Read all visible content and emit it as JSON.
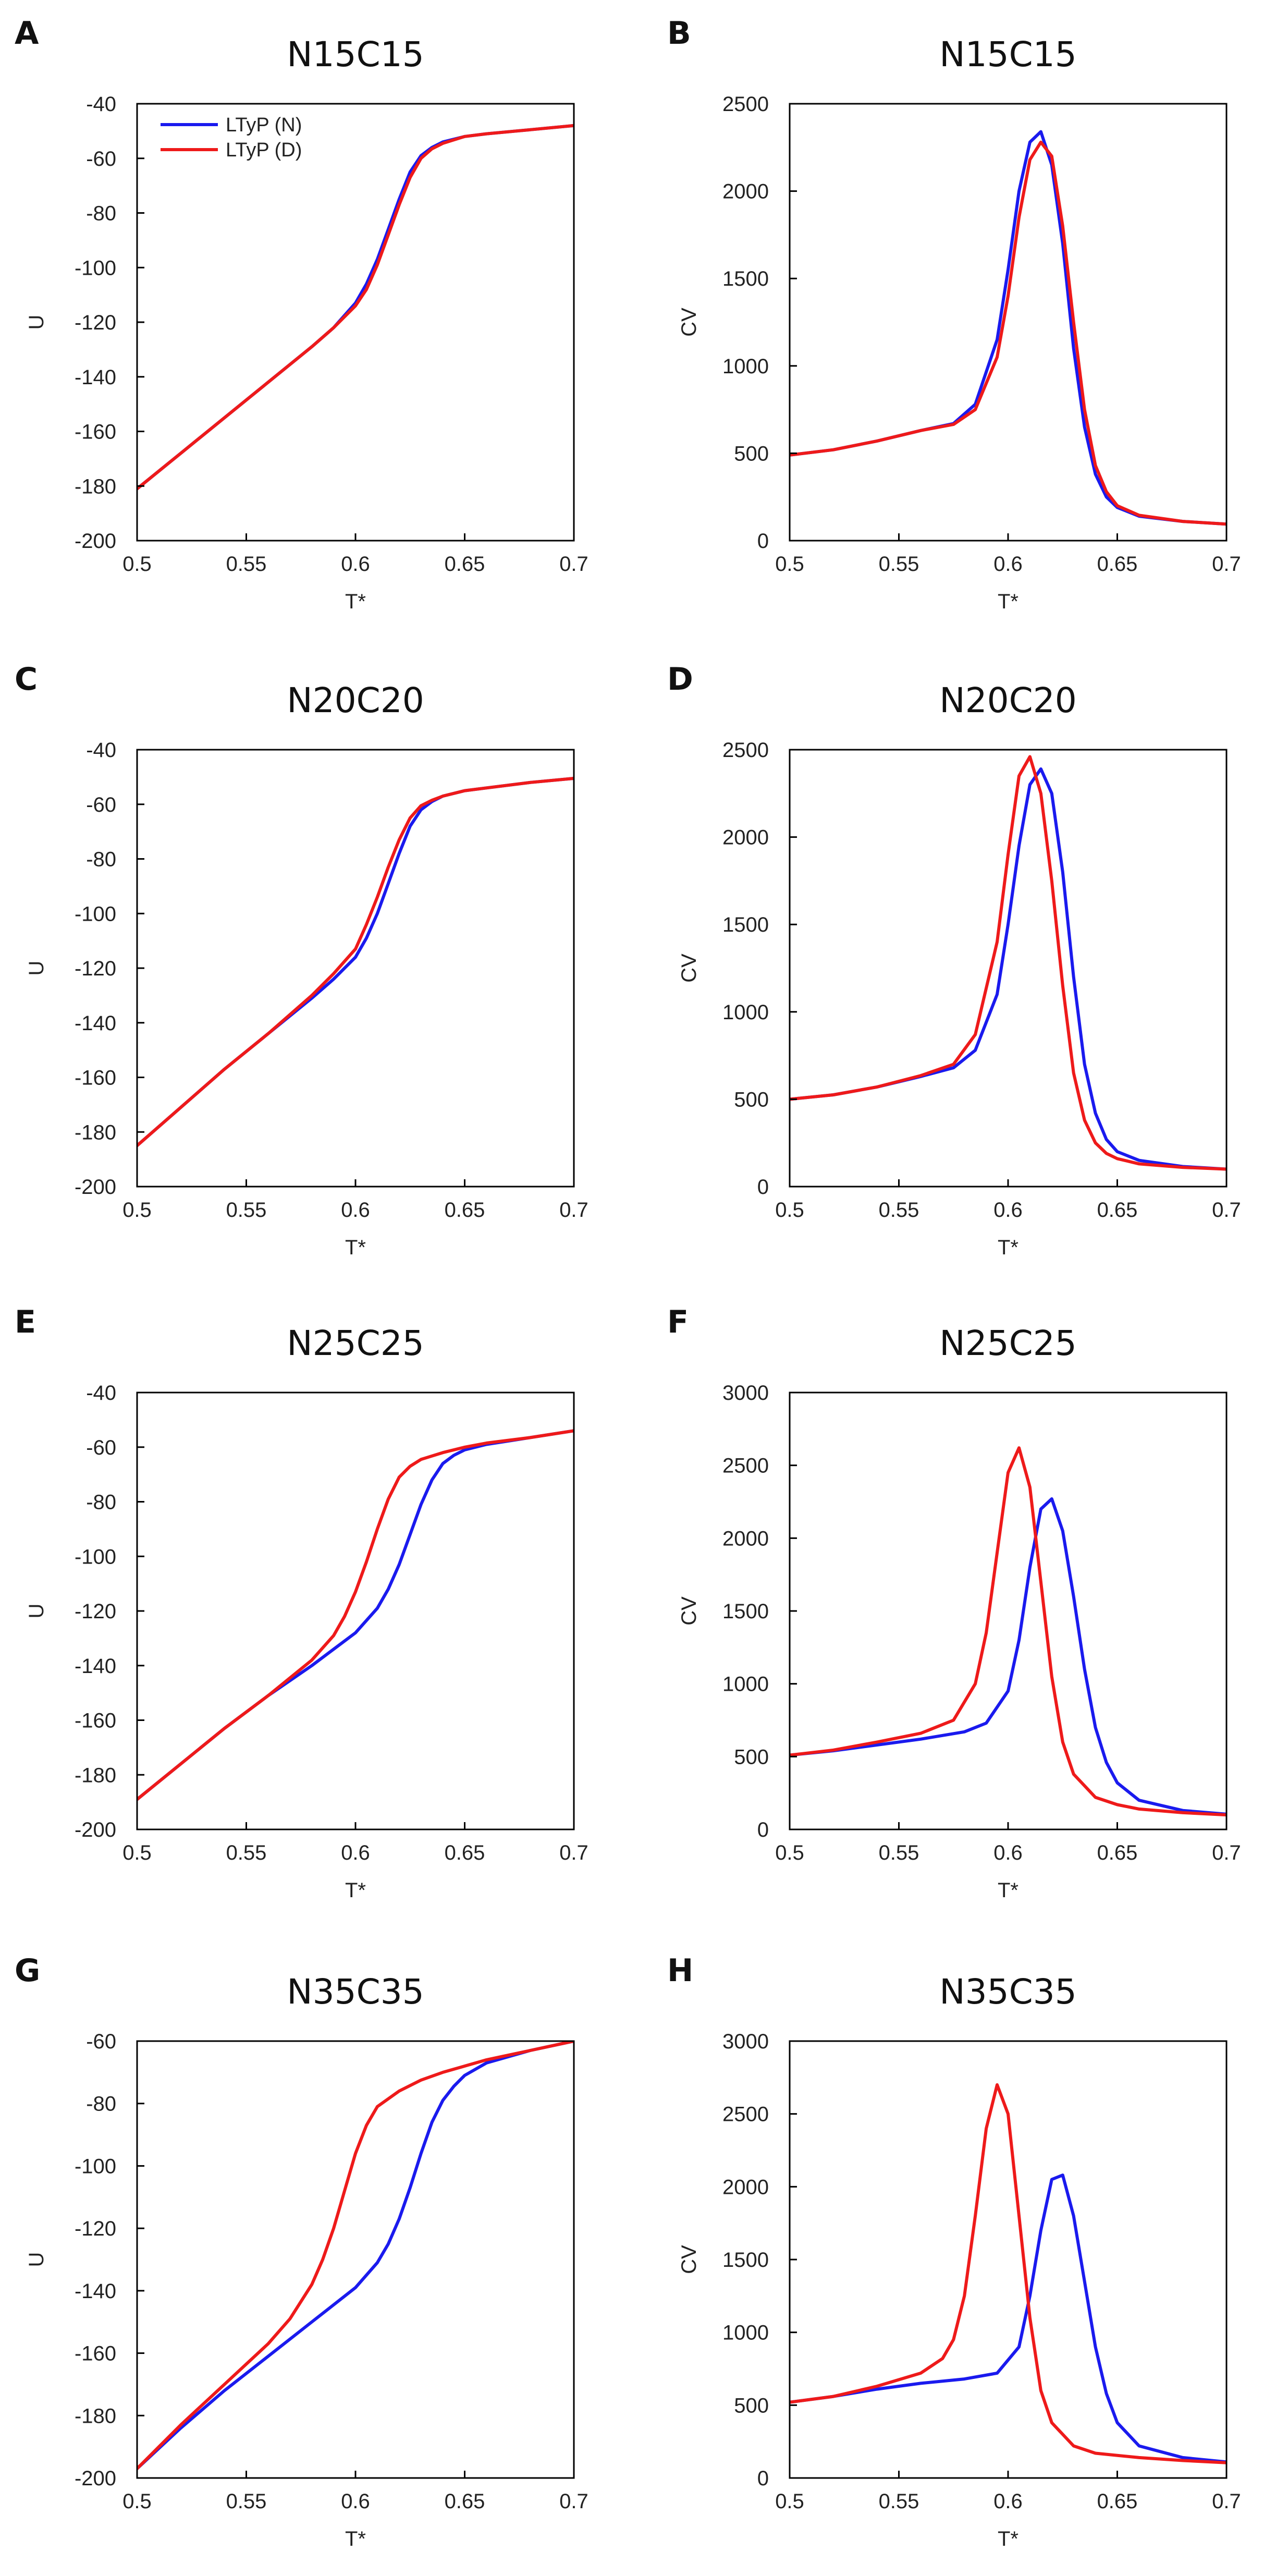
{
  "colors": {
    "native": "#1a1aee",
    "denatured": "#ee1a1a"
  },
  "legend": {
    "entries": [
      {
        "name": "LTyP (N)",
        "color": "#1a1aee"
      },
      {
        "name": "LTyP (D)",
        "color": "#ee1a1a"
      }
    ],
    "placement": "top-left"
  },
  "chart_data": [
    {
      "panel": "A",
      "type": "line",
      "title": "N15C15",
      "xlabel": "T*",
      "ylabel": "U",
      "xlim": [
        0.5,
        0.7
      ],
      "ylim": [
        -200,
        -40
      ],
      "xticks": [
        "0.5",
        "0.55",
        "0.6",
        "0.65",
        "0.7"
      ],
      "yticks": [
        "-40",
        "-60",
        "-80",
        "-100",
        "-120",
        "-140",
        "-160",
        "-180",
        "-200"
      ],
      "series": [
        {
          "name": "LTyP (N)",
          "color": "#1a1aee",
          "x": [
            0.5,
            0.52,
            0.54,
            0.56,
            0.58,
            0.59,
            0.6,
            0.605,
            0.61,
            0.615,
            0.62,
            0.625,
            0.63,
            0.635,
            0.64,
            0.65,
            0.66,
            0.68,
            0.7
          ],
          "y": [
            -181,
            -168,
            -155,
            -142,
            -129,
            -122,
            -113,
            -106,
            -97,
            -86,
            -75,
            -65,
            -59,
            -56,
            -54,
            -52,
            -51,
            -49.5,
            -48
          ]
        },
        {
          "name": "LTyP (D)",
          "color": "#ee1a1a",
          "x": [
            0.5,
            0.52,
            0.54,
            0.56,
            0.58,
            0.59,
            0.6,
            0.605,
            0.61,
            0.615,
            0.62,
            0.625,
            0.63,
            0.635,
            0.64,
            0.65,
            0.66,
            0.68,
            0.7
          ],
          "y": [
            -181,
            -168,
            -155,
            -142,
            -129,
            -122,
            -114,
            -108,
            -99,
            -88,
            -77,
            -67,
            -60,
            -56.5,
            -54.5,
            -52,
            -51,
            -49.5,
            -48
          ]
        }
      ]
    },
    {
      "panel": "B",
      "type": "line",
      "title": "N15C15",
      "xlabel": "T*",
      "ylabel": "CV",
      "xlim": [
        0.5,
        0.7
      ],
      "ylim": [
        0,
        2500
      ],
      "xticks": [
        "0.5",
        "0.55",
        "0.6",
        "0.65",
        "0.7"
      ],
      "yticks": [
        "2500",
        "2000",
        "1500",
        "1000",
        "500",
        "0"
      ],
      "series": [
        {
          "name": "LTyP (N)",
          "color": "#1a1aee",
          "x": [
            0.5,
            0.52,
            0.54,
            0.56,
            0.575,
            0.585,
            0.595,
            0.6,
            0.605,
            0.61,
            0.615,
            0.62,
            0.625,
            0.63,
            0.635,
            0.64,
            0.645,
            0.65,
            0.66,
            0.68,
            0.7
          ],
          "y": [
            490,
            520,
            570,
            630,
            670,
            780,
            1150,
            1550,
            2000,
            2280,
            2340,
            2150,
            1700,
            1100,
            650,
            380,
            250,
            190,
            140,
            110,
            95
          ]
        },
        {
          "name": "LTyP (D)",
          "color": "#ee1a1a",
          "x": [
            0.5,
            0.52,
            0.54,
            0.56,
            0.575,
            0.585,
            0.595,
            0.6,
            0.605,
            0.61,
            0.615,
            0.62,
            0.625,
            0.63,
            0.635,
            0.64,
            0.645,
            0.65,
            0.66,
            0.68,
            0.7
          ],
          "y": [
            490,
            520,
            570,
            630,
            665,
            750,
            1050,
            1400,
            1850,
            2180,
            2280,
            2200,
            1800,
            1250,
            750,
            430,
            280,
            200,
            145,
            110,
            95
          ]
        }
      ]
    },
    {
      "panel": "C",
      "type": "line",
      "title": "N20C20",
      "xlabel": "T*",
      "ylabel": "U",
      "xlim": [
        0.5,
        0.7
      ],
      "ylim": [
        -200,
        -40
      ],
      "xticks": [
        "0.5",
        "0.55",
        "0.6",
        "0.65",
        "0.7"
      ],
      "yticks": [
        "-40",
        "-60",
        "-80",
        "-100",
        "-120",
        "-140",
        "-160",
        "-180",
        "-200"
      ],
      "series": [
        {
          "name": "LTyP (N)",
          "color": "#1a1aee",
          "x": [
            0.5,
            0.52,
            0.54,
            0.56,
            0.58,
            0.59,
            0.6,
            0.605,
            0.61,
            0.615,
            0.62,
            0.625,
            0.63,
            0.635,
            0.64,
            0.65,
            0.66,
            0.68,
            0.7
          ],
          "y": [
            -185,
            -171,
            -157,
            -144,
            -131,
            -124,
            -116,
            -109,
            -100,
            -89,
            -78,
            -68,
            -62,
            -59,
            -57,
            -55,
            -54,
            -52,
            -50.5
          ]
        },
        {
          "name": "LTyP (D)",
          "color": "#ee1a1a",
          "x": [
            0.5,
            0.52,
            0.54,
            0.56,
            0.58,
            0.59,
            0.6,
            0.605,
            0.61,
            0.615,
            0.62,
            0.625,
            0.63,
            0.635,
            0.64,
            0.65,
            0.66,
            0.68,
            0.7
          ],
          "y": [
            -185,
            -171,
            -157,
            -144,
            -130,
            -122,
            -113,
            -104,
            -94,
            -83,
            -73,
            -65,
            -60.5,
            -58.5,
            -57,
            -55,
            -54,
            -52,
            -50.5
          ]
        }
      ]
    },
    {
      "panel": "D",
      "type": "line",
      "title": "N20C20",
      "xlabel": "T*",
      "ylabel": "CV",
      "xlim": [
        0.5,
        0.7
      ],
      "ylim": [
        0,
        2500
      ],
      "xticks": [
        "0.5",
        "0.55",
        "0.6",
        "0.65",
        "0.7"
      ],
      "yticks": [
        "2500",
        "2000",
        "1500",
        "1000",
        "500",
        "0"
      ],
      "series": [
        {
          "name": "LTyP (N)",
          "color": "#1a1aee",
          "x": [
            0.5,
            0.52,
            0.54,
            0.56,
            0.575,
            0.585,
            0.595,
            0.6,
            0.605,
            0.61,
            0.615,
            0.62,
            0.625,
            0.63,
            0.635,
            0.64,
            0.645,
            0.65,
            0.66,
            0.68,
            0.7
          ],
          "y": [
            500,
            525,
            570,
            630,
            680,
            780,
            1100,
            1500,
            1950,
            2300,
            2390,
            2250,
            1800,
            1200,
            700,
            420,
            270,
            200,
            150,
            115,
            100
          ]
        },
        {
          "name": "LTyP (D)",
          "color": "#ee1a1a",
          "x": [
            0.5,
            0.52,
            0.54,
            0.56,
            0.575,
            0.585,
            0.595,
            0.6,
            0.605,
            0.61,
            0.615,
            0.62,
            0.625,
            0.63,
            0.635,
            0.64,
            0.645,
            0.65,
            0.66,
            0.68,
            0.7
          ],
          "y": [
            500,
            525,
            570,
            635,
            700,
            870,
            1400,
            1900,
            2350,
            2460,
            2250,
            1750,
            1150,
            650,
            380,
            250,
            190,
            160,
            130,
            110,
            100
          ]
        }
      ]
    },
    {
      "panel": "E",
      "type": "line",
      "title": "N25C25",
      "xlabel": "T*",
      "ylabel": "U",
      "xlim": [
        0.5,
        0.7
      ],
      "ylim": [
        -200,
        -40
      ],
      "xticks": [
        "0.5",
        "0.55",
        "0.6",
        "0.65",
        "0.7"
      ],
      "yticks": [
        "-40",
        "-60",
        "-80",
        "-100",
        "-120",
        "-140",
        "-160",
        "-180",
        "-200"
      ],
      "series": [
        {
          "name": "LTyP (N)",
          "color": "#1a1aee",
          "x": [
            0.5,
            0.52,
            0.54,
            0.56,
            0.58,
            0.59,
            0.6,
            0.61,
            0.615,
            0.62,
            0.625,
            0.63,
            0.635,
            0.64,
            0.645,
            0.65,
            0.66,
            0.68,
            0.7
          ],
          "y": [
            -189,
            -176,
            -163,
            -151,
            -140,
            -134,
            -128,
            -119,
            -112,
            -103,
            -92,
            -81,
            -72,
            -66,
            -63,
            -61,
            -59,
            -56.5,
            -54
          ]
        },
        {
          "name": "LTyP (D)",
          "color": "#ee1a1a",
          "x": [
            0.5,
            0.52,
            0.54,
            0.56,
            0.58,
            0.59,
            0.595,
            0.6,
            0.605,
            0.61,
            0.615,
            0.62,
            0.625,
            0.63,
            0.64,
            0.65,
            0.66,
            0.68,
            0.7
          ],
          "y": [
            -189,
            -176,
            -163,
            -151,
            -138,
            -129,
            -122,
            -113,
            -102,
            -90,
            -79,
            -71,
            -67,
            -64.5,
            -62,
            -60,
            -58.5,
            -56.5,
            -54
          ]
        }
      ]
    },
    {
      "panel": "F",
      "type": "line",
      "title": "N25C25",
      "xlabel": "T*",
      "ylabel": "CV",
      "xlim": [
        0.5,
        0.7
      ],
      "ylim": [
        0,
        3000
      ],
      "xticks": [
        "0.5",
        "0.55",
        "0.6",
        "0.65",
        "0.7"
      ],
      "yticks": [
        "3000",
        "2500",
        "2000",
        "1500",
        "1000",
        "500",
        "0"
      ],
      "series": [
        {
          "name": "LTyP (N)",
          "color": "#1a1aee",
          "x": [
            0.5,
            0.52,
            0.54,
            0.56,
            0.58,
            0.59,
            0.6,
            0.605,
            0.61,
            0.615,
            0.62,
            0.625,
            0.63,
            0.635,
            0.64,
            0.645,
            0.65,
            0.66,
            0.68,
            0.7
          ],
          "y": [
            510,
            540,
            580,
            620,
            670,
            730,
            950,
            1300,
            1800,
            2200,
            2270,
            2050,
            1600,
            1100,
            700,
            460,
            320,
            200,
            130,
            105
          ]
        },
        {
          "name": "LTyP (D)",
          "color": "#ee1a1a",
          "x": [
            0.5,
            0.52,
            0.54,
            0.56,
            0.575,
            0.585,
            0.59,
            0.595,
            0.6,
            0.605,
            0.61,
            0.615,
            0.62,
            0.625,
            0.63,
            0.64,
            0.65,
            0.66,
            0.68,
            0.7
          ],
          "y": [
            510,
            545,
            600,
            660,
            750,
            1000,
            1350,
            1900,
            2450,
            2620,
            2350,
            1700,
            1050,
            600,
            380,
            220,
            170,
            140,
            115,
            100
          ]
        }
      ]
    },
    {
      "panel": "G",
      "type": "line",
      "title": "N35C35",
      "xlabel": "T*",
      "ylabel": "U",
      "xlim": [
        0.5,
        0.7
      ],
      "ylim": [
        -200,
        -60
      ],
      "xticks": [
        "0.5",
        "0.55",
        "0.6",
        "0.65",
        "0.7"
      ],
      "yticks": [
        "-60",
        "-80",
        "-100",
        "-120",
        "-140",
        "-160",
        "-180",
        "-200"
      ],
      "series": [
        {
          "name": "LTyP (N)",
          "color": "#1a1aee",
          "x": [
            0.5,
            0.52,
            0.54,
            0.56,
            0.58,
            0.6,
            0.61,
            0.615,
            0.62,
            0.625,
            0.63,
            0.635,
            0.64,
            0.645,
            0.65,
            0.66,
            0.68,
            0.7
          ],
          "y": [
            -197,
            -184,
            -172,
            -161,
            -150,
            -139,
            -131,
            -125,
            -117,
            -107,
            -96,
            -86,
            -79,
            -74.5,
            -71,
            -67,
            -63,
            -60
          ]
        },
        {
          "name": "LTyP (D)",
          "color": "#ee1a1a",
          "x": [
            0.5,
            0.52,
            0.54,
            0.56,
            0.57,
            0.58,
            0.585,
            0.59,
            0.595,
            0.6,
            0.605,
            0.61,
            0.62,
            0.63,
            0.64,
            0.66,
            0.68,
            0.7
          ],
          "y": [
            -197,
            -183,
            -170,
            -157,
            -149,
            -138,
            -130,
            -120,
            -108,
            -96,
            -87,
            -81,
            -76,
            -72.5,
            -70,
            -66,
            -63,
            -60
          ]
        }
      ]
    },
    {
      "panel": "H",
      "type": "line",
      "title": "N35C35",
      "xlabel": "T*",
      "ylabel": "CV",
      "xlim": [
        0.5,
        0.7
      ],
      "ylim": [
        0,
        3000
      ],
      "xticks": [
        "0.5",
        "0.55",
        "0.6",
        "0.65",
        "0.7"
      ],
      "yticks": [
        "3000",
        "2500",
        "2000",
        "1500",
        "1000",
        "500",
        "0"
      ],
      "series": [
        {
          "name": "LTyP (N)",
          "color": "#1a1aee",
          "x": [
            0.5,
            0.52,
            0.54,
            0.56,
            0.58,
            0.595,
            0.605,
            0.61,
            0.615,
            0.62,
            0.625,
            0.63,
            0.635,
            0.64,
            0.645,
            0.65,
            0.66,
            0.68,
            0.7
          ],
          "y": [
            520,
            560,
            610,
            650,
            680,
            720,
            900,
            1250,
            1700,
            2050,
            2080,
            1800,
            1350,
            900,
            580,
            380,
            220,
            140,
            110
          ]
        },
        {
          "name": "LTyP (D)",
          "color": "#ee1a1a",
          "x": [
            0.5,
            0.52,
            0.54,
            0.56,
            0.57,
            0.575,
            0.58,
            0.585,
            0.59,
            0.595,
            0.6,
            0.605,
            0.61,
            0.615,
            0.62,
            0.63,
            0.64,
            0.66,
            0.68,
            0.7
          ],
          "y": [
            520,
            560,
            630,
            720,
            820,
            950,
            1250,
            1800,
            2400,
            2700,
            2500,
            1800,
            1100,
            600,
            380,
            220,
            170,
            140,
            120,
            105
          ]
        }
      ]
    }
  ]
}
